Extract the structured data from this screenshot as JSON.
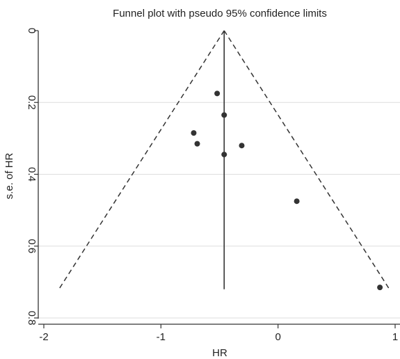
{
  "chart_data": {
    "type": "scatter",
    "title": "Funnel plot with pseudo 95% confidence limits",
    "xlabel": "HR",
    "ylabel": "s.e. of HR",
    "xlim": [
      -2.0,
      1.0
    ],
    "ylim": [
      0.0,
      0.8
    ],
    "y_reversed": true,
    "x_ticks": [
      -2,
      -1,
      0,
      1
    ],
    "x_tick_labels": [
      "-2",
      "-1",
      "0",
      "1"
    ],
    "y_ticks": [
      0,
      0.2,
      0.4,
      0.6,
      0.8
    ],
    "y_tick_labels": [
      "0",
      "0.2",
      "0.4",
      "0.6",
      "0.8"
    ],
    "grid": "horizontal",
    "pooled_estimate": -0.46,
    "max_se": 0.72,
    "ci_multiplier": 1.96,
    "points": [
      {
        "x": -0.52,
        "y": 0.175
      },
      {
        "x": -0.46,
        "y": 0.235
      },
      {
        "x": -0.72,
        "y": 0.285
      },
      {
        "x": -0.69,
        "y": 0.315
      },
      {
        "x": -0.31,
        "y": 0.32
      },
      {
        "x": -0.46,
        "y": 0.345
      },
      {
        "x": 0.16,
        "y": 0.475
      },
      {
        "x": 0.87,
        "y": 0.715
      }
    ],
    "colors": {
      "points": "#333333",
      "lines": "#333333",
      "grid": "#dddddd",
      "axis": "#333333"
    }
  }
}
